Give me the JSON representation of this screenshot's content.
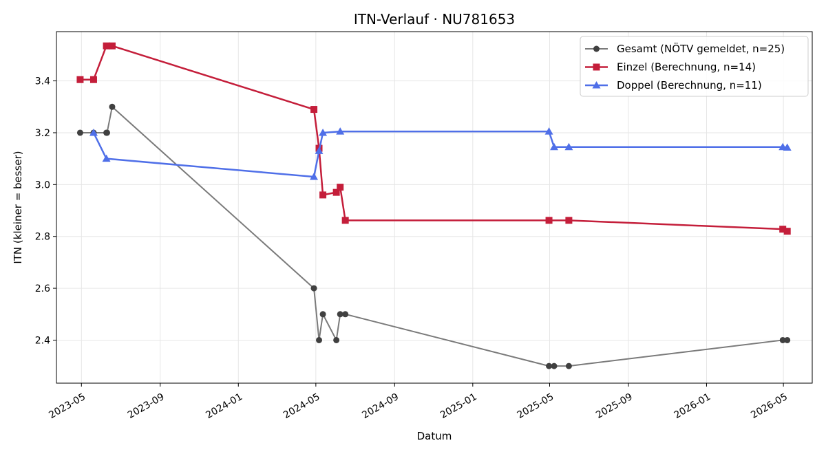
{
  "chart_data": {
    "type": "line",
    "title": "ITN-Verlauf · NU781653",
    "xlabel": "Datum",
    "ylabel": "ITN  (kleiner = besser)",
    "x_type": "date",
    "xlim": [
      "2023-03-23",
      "2026-06-15"
    ],
    "ylim": [
      2.234,
      3.59
    ],
    "xticks": [
      "2023-05-01",
      "2023-09-01",
      "2024-01-01",
      "2024-05-01",
      "2024-09-01",
      "2025-01-01",
      "2025-05-01",
      "2025-09-01",
      "2026-01-01",
      "2026-05-01"
    ],
    "xtick_labels": [
      "2023-05",
      "2023-09",
      "2024-01",
      "2024-05",
      "2024-09",
      "2025-01",
      "2025-05",
      "2025-09",
      "2026-01",
      "2026-05"
    ],
    "yticks": [
      2.4,
      2.6,
      2.8,
      3.0,
      3.2,
      3.4
    ],
    "ytick_labels": [
      "2.4",
      "2.6",
      "2.8",
      "3.0",
      "3.2",
      "3.4"
    ],
    "grid": true,
    "legend_position": "top-right",
    "series": [
      {
        "name": "Gesamt (NÖTV gemeldet, n=25)",
        "color": "#7a7a7a",
        "marker_color": "#404040",
        "marker": "circle",
        "x": [
          "2023-04-29",
          "2023-05-20",
          "2023-06-09",
          "2023-06-10",
          "2023-06-18",
          "2024-04-28",
          "2024-05-06",
          "2024-05-12",
          "2024-06-02",
          "2024-06-08",
          "2024-06-16",
          "2025-04-30",
          "2025-05-08",
          "2025-05-31",
          "2026-04-30",
          "2026-05-07"
        ],
        "y": [
          3.2,
          3.2,
          3.2,
          3.2,
          3.3,
          2.6,
          2.4,
          2.5,
          2.4,
          2.5,
          2.5,
          2.3,
          2.3,
          2.3,
          2.4,
          2.4
        ]
      },
      {
        "name": "Einzel (Berechnung, n=14)",
        "color": "#c41e3a",
        "marker": "square",
        "x": [
          "2023-04-29",
          "2023-05-20",
          "2023-06-09",
          "2023-06-18",
          "2024-04-28",
          "2024-05-06",
          "2024-05-12",
          "2024-06-02",
          "2024-06-08",
          "2024-06-16",
          "2025-04-30",
          "2025-05-31",
          "2026-04-30",
          "2026-05-07"
        ],
        "y": [
          3.405,
          3.405,
          3.535,
          3.535,
          3.29,
          3.14,
          2.96,
          2.97,
          2.99,
          2.862,
          2.862,
          2.862,
          2.828,
          2.82
        ]
      },
      {
        "name": "Doppel (Berechnung, n=11)",
        "color": "#4f6fe8",
        "marker": "triangle",
        "x": [
          "2023-05-20",
          "2023-06-09",
          "2024-04-28",
          "2024-05-06",
          "2024-05-12",
          "2024-06-08",
          "2025-04-30",
          "2025-05-08",
          "2025-05-31",
          "2026-04-30",
          "2026-05-07"
        ],
        "y": [
          3.2,
          3.1,
          3.03,
          3.13,
          3.2,
          3.205,
          3.205,
          3.145,
          3.145,
          3.145,
          3.143
        ]
      }
    ]
  }
}
